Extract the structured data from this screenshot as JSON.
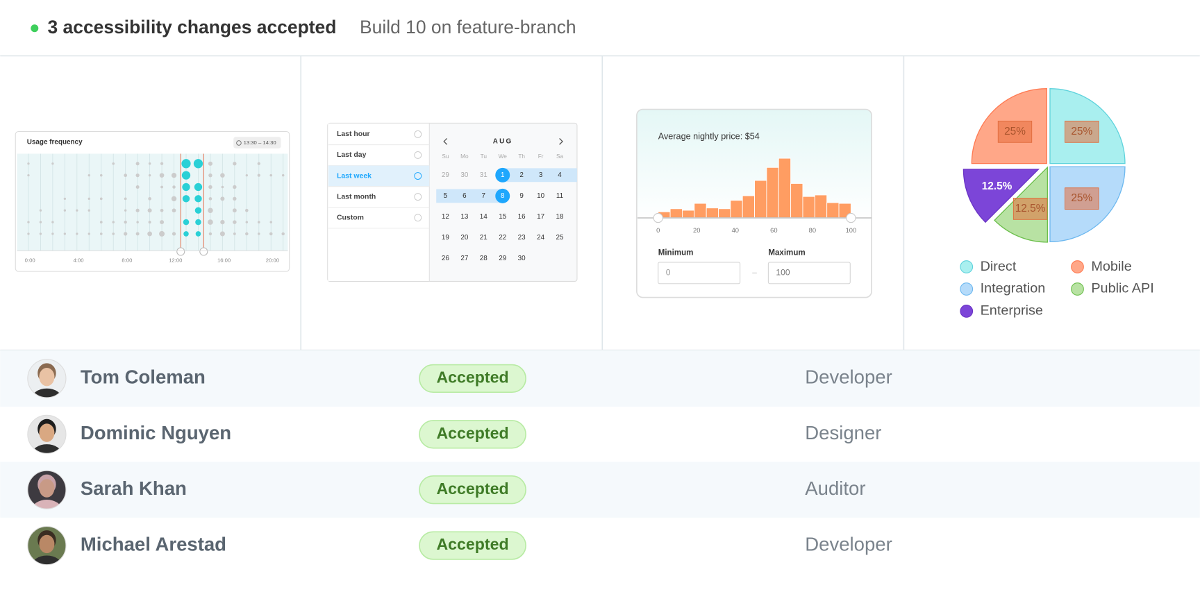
{
  "header": {
    "title": "3 accessibility changes accepted",
    "subtitle": "Build 10 on feature-branch"
  },
  "usage_panel": {
    "title": "Usage frequency",
    "range": "13:30 – 14:30",
    "xticks": [
      "0:00",
      "4:00",
      "8:00",
      "12:00",
      "16:00",
      "20:00"
    ]
  },
  "calendar": {
    "presets": [
      "Last hour",
      "Last day",
      "Last week",
      "Last month",
      "Custom"
    ],
    "selected_preset": 2,
    "month": "AUG",
    "weekdays": [
      "Su",
      "Mo",
      "Tu",
      "We",
      "Th",
      "Fr",
      "Sa"
    ],
    "weeks": [
      [
        29,
        30,
        31,
        1,
        2,
        3,
        4
      ],
      [
        5,
        6,
        7,
        8,
        9,
        10,
        11
      ],
      [
        12,
        13,
        14,
        15,
        16,
        17,
        18
      ],
      [
        19,
        20,
        21,
        22,
        23,
        24,
        25
      ],
      [
        26,
        27,
        28,
        29,
        30
      ]
    ],
    "range_start": 1,
    "range_end": 8
  },
  "histogram": {
    "type": "histogram",
    "title": "Average nightly price: $54",
    "bins": [
      0,
      6.25,
      12.5,
      18.75,
      25,
      31.25,
      37.5,
      43.75,
      50,
      56.25,
      62.5,
      68.75,
      75,
      81.25,
      87.5,
      93.75,
      100
    ],
    "values": [
      8,
      12,
      10,
      19,
      13,
      12,
      23,
      29,
      49,
      66,
      78,
      45,
      28,
      30,
      20,
      19
    ],
    "color": "#ff9d62",
    "xlim": [
      0,
      100
    ],
    "xticks": [
      0,
      20,
      40,
      60,
      80,
      100
    ],
    "ylim": [
      0,
      80
    ]
  },
  "range_inputs": {
    "min_label": "Minimum",
    "max_label": "Maximum",
    "min_value": "0",
    "max_value": "100"
  },
  "pie": {
    "type": "pie",
    "categories": [
      "Direct",
      "Integration",
      "Public API",
      "Enterprise",
      "Mobile"
    ],
    "values": [
      25,
      25,
      12.5,
      12.5,
      25
    ],
    "value_labels": [
      "25%",
      "25%",
      "12.5%",
      "12.5%",
      "25%"
    ],
    "colors": [
      "#a9efef",
      "#b5dbfa",
      "#b8e2a3",
      "#7c45d8",
      "#ffa788"
    ],
    "legend_order": [
      0,
      4,
      1,
      2,
      3
    ]
  },
  "people": [
    {
      "name": "Tom Coleman",
      "status": "Accepted",
      "role": "Developer"
    },
    {
      "name": "Dominic Nguyen",
      "status": "Accepted",
      "role": "Designer"
    },
    {
      "name": "Sarah Khan",
      "status": "Accepted",
      "role": "Auditor"
    },
    {
      "name": "Michael Arestad",
      "status": "Accepted",
      "role": "Developer"
    }
  ]
}
